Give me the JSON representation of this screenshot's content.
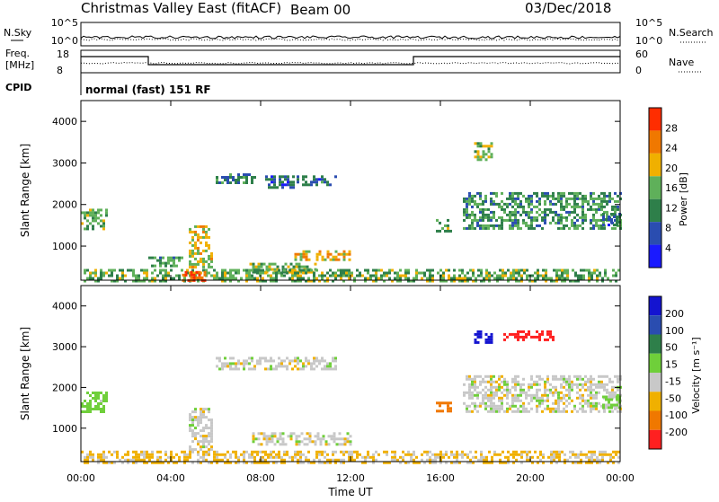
{
  "header": {
    "title": "Christmas Valley East (fitACF)",
    "beam": "Beam 00",
    "date": "03/Dec/2018"
  },
  "sky_panel": {
    "left_label": "N.Sky",
    "right_label": "N.Search",
    "left_ticks": [
      "10^5",
      "10^0"
    ],
    "right_ticks": [
      "10^5",
      "10^0"
    ]
  },
  "freq_panel": {
    "left_label_line1": "Freq.",
    "left_label_line2": "[MHz]",
    "right_label": "Nave",
    "left_ticks": [
      "18",
      "8"
    ],
    "right_ticks": [
      "60",
      "0"
    ]
  },
  "cpid_panel": {
    "label": "CPID",
    "text": "normal (fast) 151 RF"
  },
  "colors": {
    "trace": "#000000",
    "power_scale": [
      "#1a1aff",
      "#2a4db0",
      "#2e7f4a",
      "#5fb05a",
      "#f0b000",
      "#f07800",
      "#ff2d00"
    ],
    "velocity_scale": [
      "#1414d0",
      "#2a4db0",
      "#2e7f4a",
      "#6fcf3a",
      "#c8c8c8",
      "#f0b000",
      "#f07800",
      "#ff2020"
    ],
    "gray_scatter": "#c0c0c0"
  },
  "chart_data": [
    {
      "type": "heatmap",
      "name": "power",
      "xlabel": "",
      "ylabel": "Slant Range [km]",
      "x_ticks": [
        "00:00",
        "04:00",
        "08:00",
        "12:00",
        "16:00",
        "20:00",
        "00:00"
      ],
      "y_ticks": [
        1000,
        2000,
        3000,
        4000
      ],
      "xlim_hours": [
        0,
        24
      ],
      "ylim_km": [
        180,
        4500
      ],
      "colorbar": {
        "label": "Power [dB]",
        "ticks": [
          "4",
          "8",
          "12",
          "16",
          "20",
          "24",
          "28"
        ],
        "range": [
          0,
          30
        ]
      },
      "regions": [
        {
          "t0": 0.0,
          "t1": 1.2,
          "r0": 1400,
          "r1": 1900,
          "value": 14
        },
        {
          "t0": 4.8,
          "t1": 5.8,
          "r0": 500,
          "r1": 1500,
          "value": 18
        },
        {
          "t0": 6.0,
          "t1": 7.8,
          "r0": 2500,
          "r1": 2750,
          "value": 10
        },
        {
          "t0": 8.2,
          "t1": 9.5,
          "r0": 2400,
          "r1": 2700,
          "value": 8
        },
        {
          "t0": 9.6,
          "t1": 11.3,
          "r0": 2450,
          "r1": 2700,
          "value": 8
        },
        {
          "t0": 3.0,
          "t1": 4.5,
          "r0": 500,
          "r1": 750,
          "value": 12
        },
        {
          "t0": 7.5,
          "t1": 10.5,
          "r0": 400,
          "r1": 600,
          "value": 16
        },
        {
          "t0": 9.5,
          "t1": 12.0,
          "r0": 650,
          "r1": 900,
          "value": 20
        },
        {
          "t0": 15.8,
          "t1": 16.5,
          "r0": 1350,
          "r1": 1650,
          "value": 14
        },
        {
          "t0": 17.5,
          "t1": 18.3,
          "r0": 3100,
          "r1": 3500,
          "value": 16
        },
        {
          "t0": 17.0,
          "t1": 24.0,
          "r0": 1400,
          "r1": 2300,
          "value": 12
        },
        {
          "t0": 23.2,
          "t1": 24.0,
          "r0": 1500,
          "r1": 1800,
          "value": 8
        },
        {
          "t0": 0.0,
          "t1": 24.0,
          "r0": 180,
          "r1": 450,
          "value": 14
        },
        {
          "t0": 4.5,
          "t1": 5.6,
          "r0": 180,
          "r1": 400,
          "value": 28
        }
      ]
    },
    {
      "type": "heatmap",
      "name": "velocity",
      "xlabel": "Time UT",
      "ylabel": "Slant Range [km]",
      "x_ticks": [
        "00:00",
        "04:00",
        "08:00",
        "12:00",
        "16:00",
        "20:00",
        "00:00"
      ],
      "y_ticks": [
        1000,
        2000,
        3000,
        4000
      ],
      "xlim_hours": [
        0,
        24
      ],
      "ylim_km": [
        180,
        4500
      ],
      "colorbar": {
        "label": "Velocity [m s⁻¹]",
        "ticks": [
          "200",
          "100",
          "50",
          "15",
          "-15",
          "-50",
          "-100",
          "-200"
        ],
        "range": [
          -250,
          250
        ]
      },
      "regions": [
        {
          "t0": 0.0,
          "t1": 1.2,
          "r0": 1400,
          "r1": 1900,
          "value": 30
        },
        {
          "t0": 4.8,
          "t1": 5.8,
          "r0": 500,
          "r1": 1500,
          "value": 0
        },
        {
          "t0": 6.0,
          "t1": 11.3,
          "r0": 2450,
          "r1": 2750,
          "value": 0
        },
        {
          "t0": 7.5,
          "t1": 12.0,
          "r0": 600,
          "r1": 900,
          "value": 0
        },
        {
          "t0": 15.8,
          "t1": 16.5,
          "r0": 1400,
          "r1": 1650,
          "value": -70
        },
        {
          "t0": 17.5,
          "t1": 18.3,
          "r0": 3100,
          "r1": 3400,
          "value": 220
        },
        {
          "t0": 18.8,
          "t1": 21.0,
          "r0": 3150,
          "r1": 3400,
          "value": -200
        },
        {
          "t0": 17.0,
          "t1": 24.0,
          "r0": 1400,
          "r1": 2300,
          "value": 0
        },
        {
          "t0": 23.2,
          "t1": 24.0,
          "r0": 1500,
          "r1": 1800,
          "value": 30
        },
        {
          "t0": 0.0,
          "t1": 24.0,
          "r0": 180,
          "r1": 450,
          "value": -20
        }
      ]
    }
  ]
}
